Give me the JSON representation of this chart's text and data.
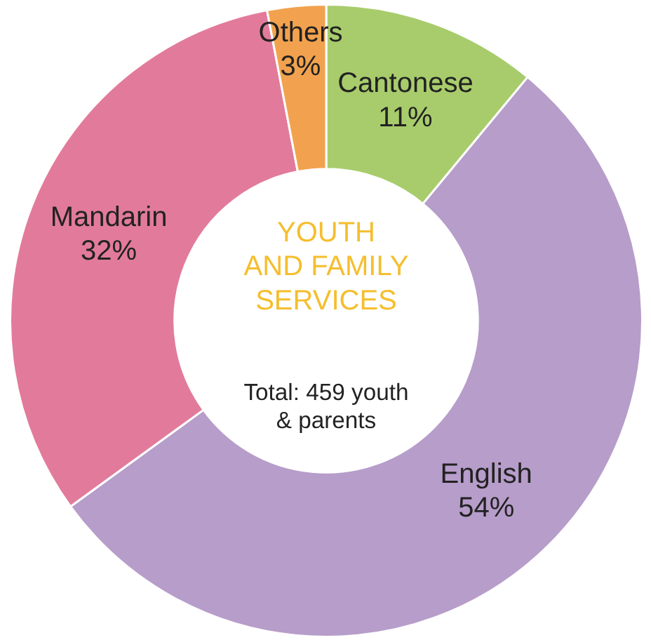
{
  "chart_data": {
    "type": "donut",
    "title": "YOUTH\nAND FAMILY\nSERVICES",
    "subtitle": "Total: 459 youth\n& parents",
    "categories": [
      "Cantonese",
      "English",
      "Mandarin",
      "Others"
    ],
    "values": [
      11,
      54,
      32,
      3
    ],
    "value_labels": [
      "11%",
      "54%",
      "32%",
      "3%"
    ],
    "colors": [
      "#a8cc6c",
      "#b79dca",
      "#e27b9b",
      "#f2a24e"
    ],
    "legend": false
  }
}
